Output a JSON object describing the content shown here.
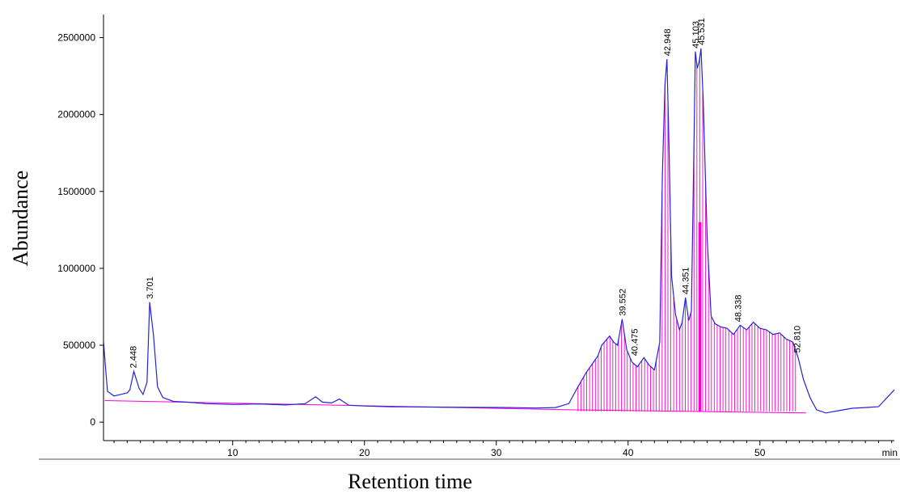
{
  "chart_data": {
    "type": "line",
    "xlabel": "Retention time",
    "ylabel": "Abundance",
    "x_unit_label": "min",
    "xlim": [
      0.2,
      60.2
    ],
    "ylim": [
      -120000,
      2650000
    ],
    "x_ticks": [
      10,
      20,
      30,
      40,
      50
    ],
    "y_ticks": [
      0,
      500000,
      1000000,
      1500000,
      2000000,
      2500000
    ],
    "colors": {
      "trace": "#2222dd",
      "integration": "#ff00cc",
      "baseline": "#ff00cc",
      "axis": "#000000"
    },
    "series": [
      {
        "values_x": [
          0.2,
          0.5,
          1.0,
          1.5,
          2.0,
          2.2,
          2.5,
          2.9,
          3.2,
          3.5,
          3.701,
          4.0,
          4.3,
          4.7,
          5.5,
          6.5,
          8.0,
          10.0,
          12.0,
          14.0,
          15.5,
          16.3,
          16.8,
          17.5,
          18.1,
          18.8,
          20.0,
          22.0,
          25.0,
          28.0,
          31.0,
          33.0,
          34.5,
          35.5,
          36.2,
          36.8,
          37.3,
          37.7,
          38.0,
          38.3,
          38.6,
          38.9,
          39.2,
          39.552,
          39.9,
          40.3,
          40.7,
          41.2,
          41.6,
          42.0,
          42.4,
          42.6,
          42.8,
          42.948,
          43.1,
          43.3,
          43.6,
          43.9,
          44.1,
          44.351,
          44.6,
          44.8,
          45.0,
          45.103,
          45.25,
          45.4,
          45.531,
          45.7,
          46.0,
          46.3,
          46.6,
          47.0,
          47.5,
          48.0,
          48.5,
          49.0,
          49.5,
          50.0,
          50.5,
          51.0,
          51.5,
          52.0,
          52.5,
          52.9,
          53.3,
          53.8,
          54.3,
          55.0,
          56.0,
          57.0,
          58.0,
          59.0,
          60.2
        ],
        "values_y": [
          520000,
          200000,
          170000,
          180000,
          190000,
          210000,
          330000,
          220000,
          180000,
          260000,
          780000,
          560000,
          230000,
          160000,
          135000,
          130000,
          120000,
          115000,
          118000,
          112000,
          120000,
          165000,
          130000,
          125000,
          150000,
          110000,
          105000,
          100000,
          98000,
          96000,
          95000,
          92000,
          95000,
          120000,
          230000,
          320000,
          380000,
          430000,
          500000,
          530000,
          560000,
          520000,
          500000,
          670000,
          470000,
          390000,
          360000,
          420000,
          370000,
          340000,
          520000,
          1600000,
          2200000,
          2360000,
          1800000,
          950000,
          700000,
          600000,
          650000,
          810000,
          660000,
          720000,
          1800000,
          2410000,
          2300000,
          2350000,
          2430000,
          2100000,
          1200000,
          690000,
          640000,
          620000,
          610000,
          570000,
          630000,
          600000,
          650000,
          610000,
          600000,
          570000,
          580000,
          540000,
          520000,
          420000,
          280000,
          160000,
          80000,
          60000,
          75000,
          90000,
          95000,
          100000,
          210000
        ]
      }
    ],
    "labeled_peaks": [
      {
        "rt": 2.448,
        "abundance": 330000,
        "label": "2.448"
      },
      {
        "rt": 3.701,
        "abundance": 780000,
        "label": "3.701"
      },
      {
        "rt": 39.552,
        "abundance": 670000,
        "label": "39.552"
      },
      {
        "rt": 40.475,
        "abundance": 410000,
        "label": "40.475"
      },
      {
        "rt": 42.948,
        "abundance": 2360000,
        "label": "42.948"
      },
      {
        "rt": 44.351,
        "abundance": 810000,
        "label": "44.351"
      },
      {
        "rt": 45.103,
        "abundance": 2410000,
        "label": "45.103"
      },
      {
        "rt": 45.531,
        "abundance": 2430000,
        "label": "45.531"
      },
      {
        "rt": 48.338,
        "abundance": 630000,
        "label": "48.338"
      },
      {
        "rt": 52.81,
        "abundance": 430000,
        "label": "52.810"
      }
    ]
  }
}
